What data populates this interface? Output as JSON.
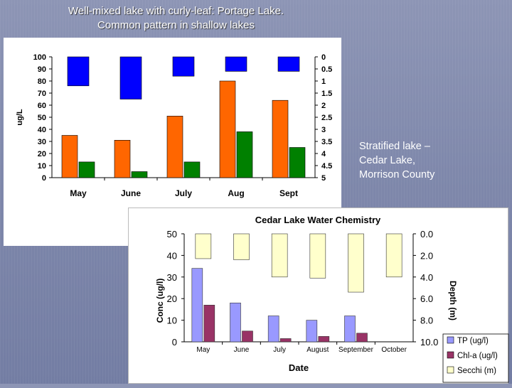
{
  "slide": {
    "title_line1": "Well-mixed lake with curly-leaf: Portage Lake.",
    "title_line2": "Common pattern in shallow lakes",
    "side_line1": "Stratified lake –",
    "side_line2": "Cedar Lake,",
    "side_line3": "Morrison County"
  },
  "chart_data": [
    {
      "type": "bar",
      "title": "",
      "categories": [
        "May",
        "June",
        "July",
        "Aug",
        "Sept"
      ],
      "ylabel": "ug/L",
      "ylim": [
        0,
        100
      ],
      "yticks": [
        "0",
        "10",
        "20",
        "30",
        "40",
        "50",
        "60",
        "70",
        "80",
        "90",
        "100"
      ],
      "y2lim": [
        0,
        5
      ],
      "y2ticks": [
        "0",
        "0.5",
        "1",
        "1.5",
        "2",
        "2.5",
        "3",
        "3.5",
        "4",
        "4.5",
        "5"
      ],
      "y2_inverted": true,
      "series": [
        {
          "values": [
            35,
            31,
            51,
            80,
            64
          ],
          "color": "#ff6600",
          "axis": "left"
        },
        {
          "values": [
            13,
            5,
            13,
            38,
            25
          ],
          "color": "#008000",
          "axis": "left"
        },
        {
          "values": [
            1.2,
            1.75,
            0.8,
            0.6,
            0.6
          ],
          "color": "#0000ff",
          "axis": "right",
          "hanging": true
        }
      ]
    },
    {
      "type": "bar",
      "title": "Cedar Lake Water Chemistry",
      "categories": [
        "May",
        "June",
        "July",
        "August",
        "September",
        "October"
      ],
      "xlabel": "Date",
      "ylabel": "Conc (ug/l)",
      "y2label": "Depth (m)",
      "ylim": [
        0,
        50
      ],
      "yticks": [
        "0",
        "10",
        "20",
        "30",
        "40",
        "50"
      ],
      "y2lim": [
        0,
        10
      ],
      "y2ticks": [
        "0.0",
        "2.0",
        "4.0",
        "6.0",
        "8.0",
        "10.0"
      ],
      "y2_inverted": true,
      "legend_position": "right",
      "series": [
        {
          "name": "TP (ug/l)",
          "values": [
            34,
            18,
            12,
            10,
            12,
            null
          ],
          "color": "#9999ff",
          "axis": "left"
        },
        {
          "name": "Chl-a (ug/l)",
          "values": [
            17,
            5,
            1.5,
            2.5,
            4,
            null
          ],
          "color": "#993366",
          "axis": "left"
        },
        {
          "name": "Secchi (m)",
          "values": [
            2.3,
            2.4,
            4.0,
            4.1,
            5.4,
            4.0
          ],
          "color": "#ffffcc",
          "axis": "right",
          "hanging": true
        }
      ]
    }
  ]
}
